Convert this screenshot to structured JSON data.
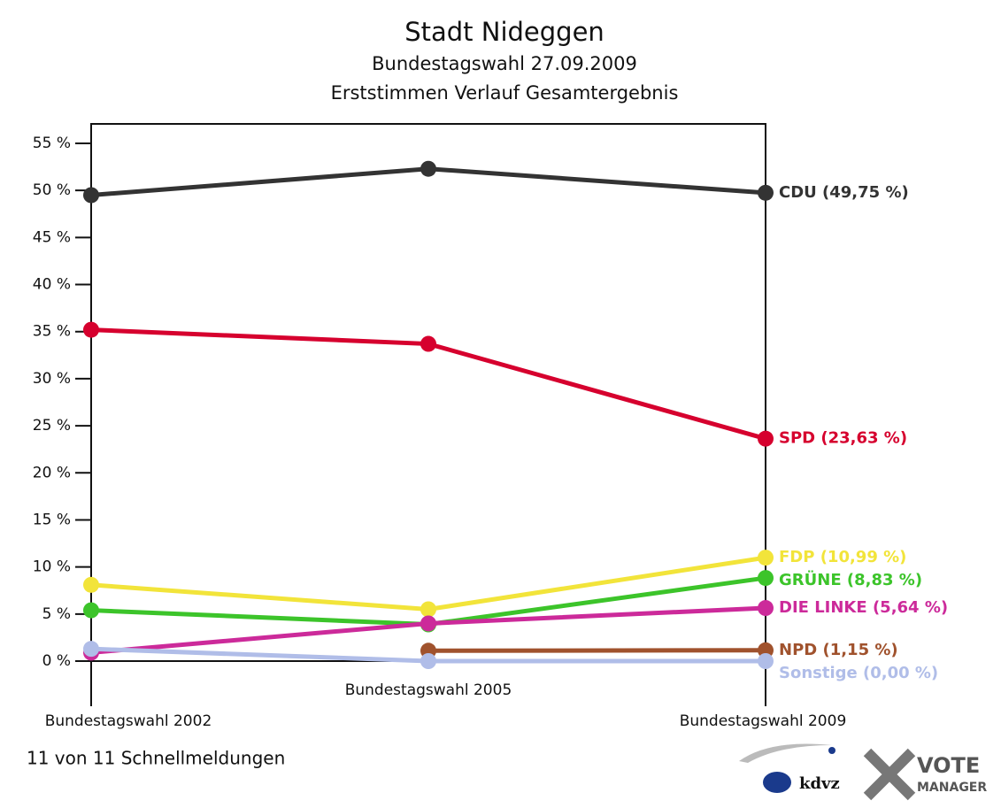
{
  "chart_data": {
    "type": "line",
    "title": "Stadt Nideggen",
    "subtitle": "Bundestagswahl 27.09.2009",
    "subtitle2": "Erststimmen Verlauf Gesamtergebnis",
    "categories": [
      "Bundestagswahl 2002",
      "Bundestagswahl 2005",
      "Bundestagswahl 2009"
    ],
    "series": [
      {
        "name": "CDU",
        "color": "#333333",
        "values": [
          49.5,
          52.3,
          49.75
        ],
        "value_labels": [
          null,
          null,
          "CDU (49,75 %)"
        ]
      },
      {
        "name": "SPD",
        "color": "#d6002e",
        "values": [
          35.2,
          33.7,
          23.63
        ],
        "value_labels": [
          null,
          null,
          "SPD (23,63 %)"
        ]
      },
      {
        "name": "FDP",
        "color": "#f2e43a",
        "values": [
          8.1,
          5.5,
          10.99
        ],
        "value_labels": [
          null,
          null,
          "FDP (10,99 %)"
        ]
      },
      {
        "name": "GRÜNE",
        "color": "#3cc42a",
        "values": [
          5.4,
          3.9,
          8.83
        ],
        "value_labels": [
          null,
          null,
          "GRÜNE (8,83 %)"
        ]
      },
      {
        "name": "DIE LINKE",
        "color": "#cc2a9a",
        "values": [
          0.9,
          4.0,
          5.64
        ],
        "value_labels": [
          null,
          null,
          "DIE LINKE (5,64 %)"
        ]
      },
      {
        "name": "NPD",
        "color": "#a0522d",
        "values": [
          null,
          1.1,
          1.15
        ],
        "value_labels": [
          null,
          null,
          "NPD (1,15 %)"
        ]
      },
      {
        "name": "Sonstige",
        "color": "#b0bde8",
        "values": [
          1.3,
          0,
          0
        ],
        "value_labels": [
          null,
          null,
          "Sonstige (0,00 %)"
        ]
      }
    ],
    "ylim": [
      0,
      55
    ],
    "yticks": [
      {
        "value": 0,
        "label": "0 %"
      },
      {
        "value": 5,
        "label": "5 %"
      },
      {
        "value": 10,
        "label": "10 %"
      },
      {
        "value": 15,
        "label": "15 %"
      },
      {
        "value": 20,
        "label": "20 %"
      },
      {
        "value": 25,
        "label": "25 %"
      },
      {
        "value": 30,
        "label": "30 %"
      },
      {
        "value": 35,
        "label": "35 %"
      },
      {
        "value": 40,
        "label": "40 %"
      },
      {
        "value": 45,
        "label": "45 %"
      },
      {
        "value": 50,
        "label": "50 %"
      },
      {
        "value": 55,
        "label": "55 %"
      }
    ],
    "footer": "11 von 11 Schnellmeldungen",
    "logo": {
      "kdvz": "kdvz",
      "vote": "VOTE",
      "manager": "MANAGER"
    }
  }
}
